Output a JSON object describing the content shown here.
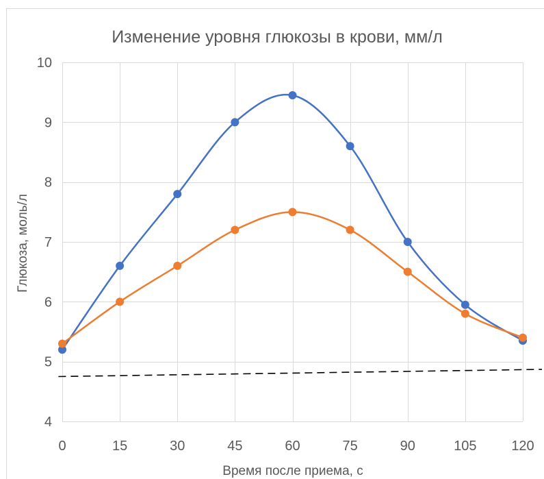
{
  "chart_data": {
    "type": "line",
    "title": "Изменение уровня глюкозы в крови, мм/л",
    "xlabel": "Время после приема, с",
    "ylabel": "Глюкоза, моль/л",
    "x": [
      0,
      15,
      30,
      45,
      60,
      75,
      90,
      105,
      120
    ],
    "xlim": [
      0,
      120
    ],
    "ylim": [
      4,
      10
    ],
    "x_ticks": [
      0,
      15,
      30,
      45,
      60,
      75,
      90,
      105,
      120
    ],
    "y_ticks": [
      4,
      5,
      6,
      7,
      8,
      9,
      10
    ],
    "grid": true,
    "smooth": true,
    "series": [
      {
        "color": "#4472c4",
        "values": [
          5.2,
          6.6,
          7.8,
          9.0,
          9.45,
          8.6,
          7.0,
          5.95,
          5.35
        ]
      },
      {
        "color": "#ed7d31",
        "values": [
          5.3,
          6.0,
          6.6,
          7.2,
          7.5,
          7.2,
          6.5,
          5.8,
          5.4
        ]
      }
    ],
    "annotations": [
      {
        "type": "dashed-line",
        "color": "#000000",
        "from": [
          -1,
          4.75
        ],
        "to": [
          125,
          4.87
        ]
      }
    ]
  }
}
